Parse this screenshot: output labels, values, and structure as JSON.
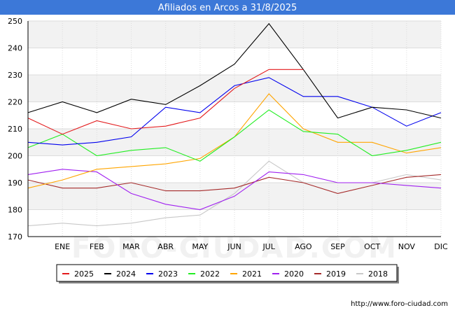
{
  "chart_data": {
    "type": "line",
    "title": "Afiliados en Arcos a 31/8/2025",
    "xlabel": "",
    "ylabel": "",
    "categories": [
      "",
      "ENE",
      "FEB",
      "MAR",
      "ABR",
      "MAY",
      "JUN",
      "JUL",
      "AGO",
      "SEP",
      "OCT",
      "NOV",
      "DIC"
    ],
    "ylim": [
      170,
      250
    ],
    "yticks": [
      170,
      180,
      190,
      200,
      210,
      220,
      230,
      240,
      250
    ],
    "series": [
      {
        "name": "2025",
        "color": "#e31a1c",
        "values": [
          214,
          208,
          213,
          210,
          211,
          214,
          225,
          232,
          232,
          null,
          null,
          null,
          null
        ]
      },
      {
        "name": "2024",
        "color": "#000000",
        "values": [
          216,
          220,
          216,
          221,
          219,
          226,
          234,
          249,
          232,
          214,
          218,
          217,
          214
        ]
      },
      {
        "name": "2023",
        "color": "#0000ee",
        "values": [
          205,
          204,
          205,
          207,
          218,
          216,
          226,
          229,
          222,
          222,
          218,
          211,
          216
        ]
      },
      {
        "name": "2022",
        "color": "#22ee22",
        "values": [
          203,
          208,
          200,
          202,
          203,
          198,
          207,
          217,
          209,
          208,
          200,
          202,
          205
        ]
      },
      {
        "name": "2021",
        "color": "#ffa500",
        "values": [
          188,
          191,
          195,
          196,
          197,
          199,
          207,
          223,
          210,
          205,
          205,
          201,
          203
        ]
      },
      {
        "name": "2020",
        "color": "#a020f0",
        "values": [
          193,
          195,
          194,
          186,
          182,
          180,
          185,
          194,
          193,
          190,
          190,
          189,
          188
        ]
      },
      {
        "name": "2019",
        "color": "#a52a2a",
        "values": [
          191,
          188,
          188,
          190,
          187,
          187,
          188,
          192,
          190,
          186,
          189,
          192,
          193
        ]
      },
      {
        "name": "2018",
        "color": "#c8c8c8",
        "values": [
          174,
          175,
          174,
          175,
          177,
          178,
          186,
          198,
          190,
          190,
          190,
          193,
          191
        ]
      }
    ]
  },
  "footer_text": "http://www.foro-ciudad.com",
  "watermark_text": "FORO-CIUDAD.COM",
  "colors": {
    "title_bar": "#3c78d8",
    "band_fill": "#f2f2f2",
    "grid": "#dcdcdc"
  }
}
